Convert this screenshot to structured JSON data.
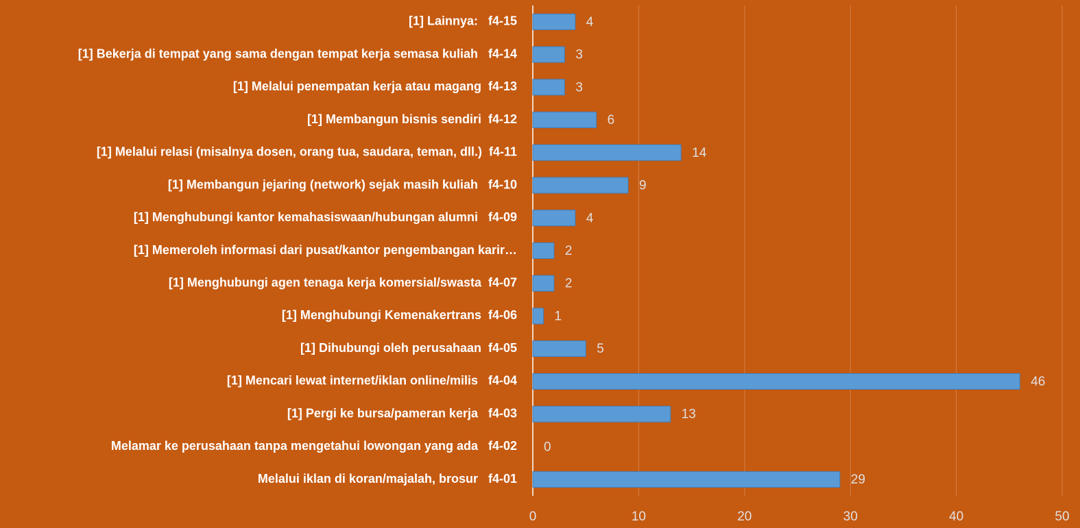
{
  "chart_data": {
    "type": "bar",
    "orientation": "horizontal",
    "categories": [
      "Melalui iklan di koran/majalah, brosur   f4-01",
      "Melamar ke perusahaan tanpa mengetahui lowongan yang ada   f4-02",
      "[1] Pergi ke bursa/pameran kerja   f4-03",
      "[1] Mencari lewat internet/iklan online/milis   f4-04",
      "[1] Dihubungi oleh perusahaan  f4-05",
      "[1] Menghubungi Kemenakertrans  f4-06",
      "[1] Menghubungi agen tenaga kerja komersial/swasta  f4-07",
      "[1] Memeroleh informasi dari pusat/kantor pengembangan karir…",
      "[1] Menghubungi kantor kemahasiswaan/hubungan alumni   f4-09",
      "[1] Membangun jejaring (network) sejak masih kuliah   f4-10",
      "[1] Melalui relasi (misalnya dosen, orang tua, saudara, teman, dll.)  f4-11",
      "[1] Membangun bisnis sendiri  f4-12",
      "[1] Melalui penempatan kerja atau magang  f4-13",
      "[1] Bekerja di tempat yang sama dengan tempat kerja semasa kuliah   f4-14",
      "[1] Lainnya:   f4-15"
    ],
    "values": [
      29,
      0,
      13,
      46,
      5,
      1,
      2,
      2,
      4,
      9,
      14,
      6,
      3,
      3,
      4
    ],
    "color": "#5b9bd5",
    "xlim": [
      0,
      50
    ],
    "xticks": [
      0,
      10,
      20,
      30,
      40,
      50
    ],
    "grid": true
  }
}
